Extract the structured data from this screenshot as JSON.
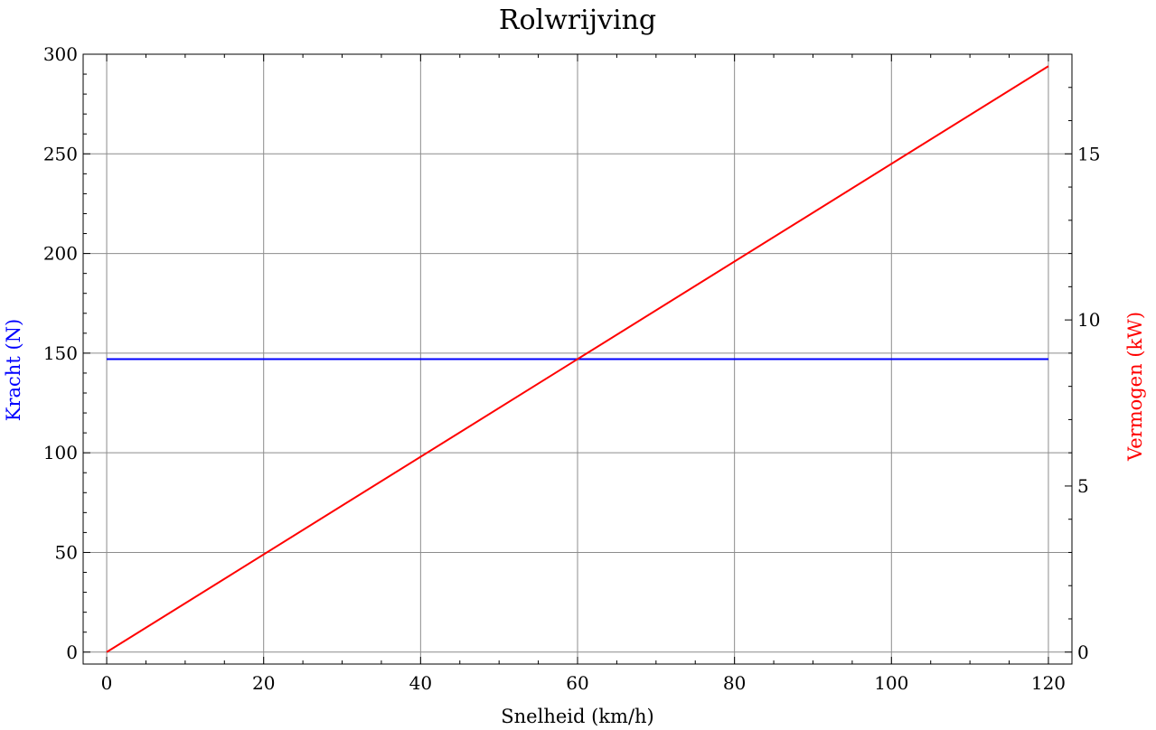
{
  "chart_data": {
    "type": "line",
    "title": "Rolwrijving",
    "xlabel": "Snelheid (km/h)",
    "ylabel_left": "Kracht (N)",
    "ylabel_right": "Vermogen (kW)",
    "xlim": [
      -3,
      123
    ],
    "ylim_left": [
      -6,
      300
    ],
    "ylim_right": [
      -0.36,
      18
    ],
    "x_ticks": [
      0,
      20,
      40,
      60,
      80,
      100,
      120
    ],
    "y_left_ticks": [
      0,
      50,
      100,
      150,
      200,
      250,
      300
    ],
    "y_right_ticks": [
      0,
      5,
      10,
      15
    ],
    "grid": true,
    "colors": {
      "left_axis": "#0000ff",
      "right_axis": "#ff0000"
    },
    "series": [
      {
        "axis": "left",
        "color": "#0000ff",
        "x": [
          0,
          120
        ],
        "y": [
          147,
          147
        ]
      },
      {
        "axis": "right",
        "color": "#ff0000",
        "x": [
          0,
          120
        ],
        "y": [
          0,
          17.64
        ]
      }
    ]
  }
}
